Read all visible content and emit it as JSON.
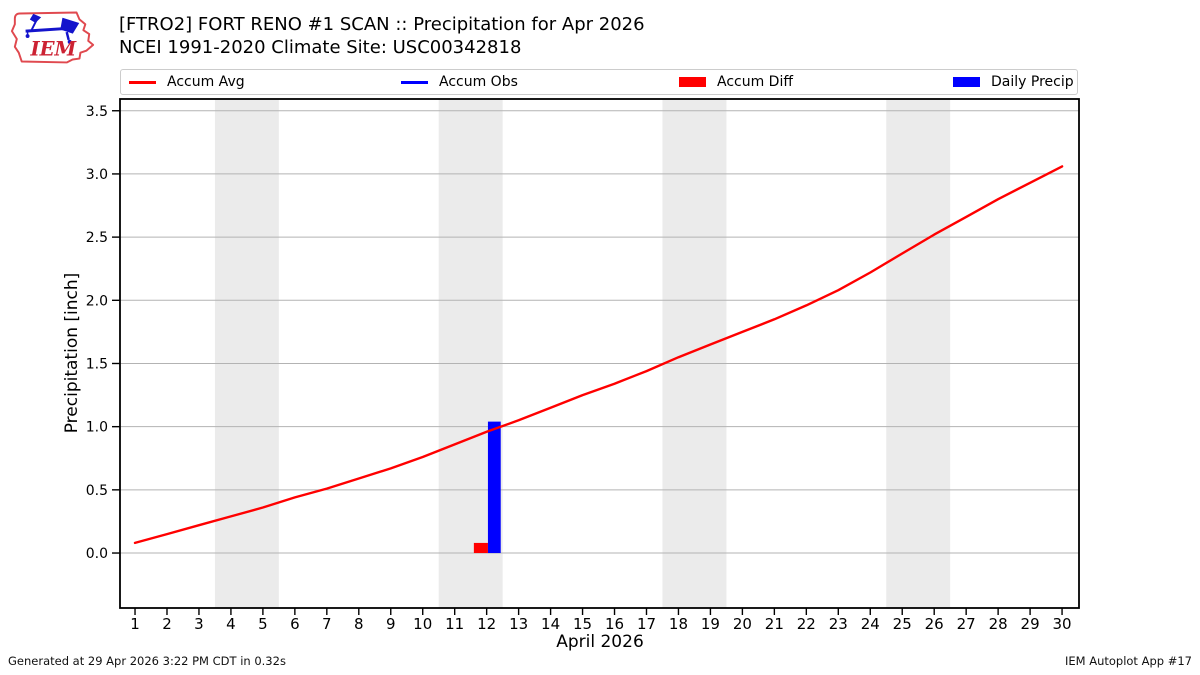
{
  "header": {
    "title_line1": "[FTRO2] FORT RENO #1 SCAN :: Precipitation for Apr 2026",
    "title_line2": "NCEI 1991-2020 Climate Site: USC00342818"
  },
  "logo": {
    "text": "IEM"
  },
  "legend": [
    {
      "label": "Accum Avg",
      "type": "line",
      "color": "#ff0000"
    },
    {
      "label": "Accum Obs",
      "type": "line",
      "color": "#0000ff"
    },
    {
      "label": "Accum Diff",
      "type": "rect",
      "color": "#ff0000"
    },
    {
      "label": "Daily Precip",
      "type": "rect",
      "color": "#0000ff"
    }
  ],
  "chart_data": {
    "type": "line+bar",
    "title": "[FTRO2] FORT RENO #1 SCAN :: Precipitation for Apr 2026",
    "subtitle": "NCEI 1991-2020 Climate Site: USC00342818",
    "xlabel": "April 2026",
    "ylabel": "Precipitation [inch]",
    "xlim": [
      0.53,
      30.53
    ],
    "ylim": [
      -0.435,
      3.593
    ],
    "grid": true,
    "legend_position": "top",
    "x_ticks": [
      1,
      2,
      3,
      4,
      5,
      6,
      7,
      8,
      9,
      10,
      11,
      12,
      13,
      14,
      15,
      16,
      17,
      18,
      19,
      20,
      21,
      22,
      23,
      24,
      25,
      26,
      27,
      28,
      29,
      30
    ],
    "y_ticks": [
      0.0,
      0.5,
      1.0,
      1.5,
      2.0,
      2.5,
      3.0,
      3.5
    ],
    "y_tick_labels": [
      "0.0",
      "0.5",
      "1.0",
      "1.5",
      "2.0",
      "2.5",
      "3.0",
      "3.5"
    ],
    "weekend_bands_days": [
      [
        3.5,
        5.5
      ],
      [
        10.5,
        12.5
      ],
      [
        17.5,
        19.5
      ],
      [
        24.5,
        26.5
      ]
    ],
    "series": [
      {
        "name": "Accum Avg",
        "type": "line",
        "color": "#ff0000",
        "x": [
          1,
          2,
          3,
          4,
          5,
          6,
          7,
          8,
          9,
          10,
          11,
          12,
          13,
          14,
          15,
          16,
          17,
          18,
          19,
          20,
          21,
          22,
          23,
          24,
          25,
          26,
          27,
          28,
          29,
          30
        ],
        "values": [
          0.08,
          0.15,
          0.22,
          0.29,
          0.36,
          0.44,
          0.51,
          0.59,
          0.67,
          0.76,
          0.86,
          0.96,
          1.05,
          1.15,
          1.25,
          1.34,
          1.44,
          1.55,
          1.65,
          1.75,
          1.85,
          1.96,
          2.08,
          2.22,
          2.37,
          2.52,
          2.66,
          2.8,
          2.93,
          3.06
        ]
      },
      {
        "name": "Accum Obs",
        "type": "line",
        "color": "#0000ff",
        "x": [
          12
        ],
        "values": [
          1.04
        ]
      },
      {
        "name": "Accum Diff",
        "type": "bar",
        "color": "#ff0000",
        "x": [
          12
        ],
        "values": [
          0.08
        ]
      },
      {
        "name": "Daily Precip",
        "type": "bar",
        "color": "#0000ff",
        "x": [
          12
        ],
        "values": [
          1.04
        ]
      }
    ]
  },
  "footer": {
    "left": "Generated at 29 Apr 2026 3:22 PM CDT in 0.32s",
    "right": "IEM Autoplot App #17"
  },
  "colors": {
    "accum_avg": "#ff0000",
    "accum_obs": "#0000ff",
    "accum_diff": "#ff0000",
    "daily_precip": "#0000ff",
    "weekend_band": "#ebebeb",
    "gridline": "#b3b3b3",
    "frame": "#000000",
    "logo_outline": "#e0494f",
    "logo_vane": "#1414cc",
    "logo_text": "#cc2233"
  }
}
